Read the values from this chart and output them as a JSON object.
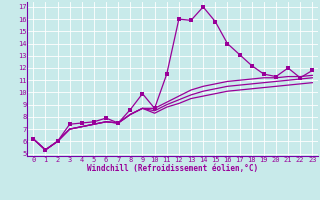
{
  "xlabel": "Windchill (Refroidissement éolien,°C)",
  "bg_color": "#c8eaea",
  "line_color": "#990099",
  "grid_color": "#ffffff",
  "spine_color": "#7700aa",
  "xlim": [
    -0.5,
    23.5
  ],
  "ylim": [
    4.8,
    17.4
  ],
  "xticks": [
    0,
    1,
    2,
    3,
    4,
    5,
    6,
    7,
    8,
    9,
    10,
    11,
    12,
    13,
    14,
    15,
    16,
    17,
    18,
    19,
    20,
    21,
    22,
    23
  ],
  "yticks": [
    5,
    6,
    7,
    8,
    9,
    10,
    11,
    12,
    13,
    14,
    15,
    16,
    17
  ],
  "series": [
    [
      6.2,
      5.3,
      6.0,
      7.4,
      7.5,
      7.6,
      7.9,
      7.5,
      8.6,
      9.9,
      8.7,
      11.5,
      16.0,
      15.9,
      17.0,
      15.8,
      14.0,
      13.1,
      12.2,
      11.5,
      11.3,
      12.0,
      11.2,
      11.8
    ],
    [
      6.2,
      5.3,
      6.0,
      7.0,
      7.2,
      7.4,
      7.6,
      7.5,
      8.2,
      8.7,
      8.7,
      9.2,
      9.7,
      10.2,
      10.5,
      10.7,
      10.9,
      11.0,
      11.1,
      11.2,
      11.2,
      11.3,
      11.3,
      11.4
    ],
    [
      6.2,
      5.3,
      6.0,
      7.0,
      7.2,
      7.4,
      7.6,
      7.5,
      8.2,
      8.7,
      8.5,
      9.0,
      9.4,
      9.8,
      10.1,
      10.3,
      10.5,
      10.6,
      10.7,
      10.8,
      10.9,
      11.0,
      11.1,
      11.2
    ],
    [
      6.2,
      5.3,
      6.0,
      7.0,
      7.2,
      7.4,
      7.6,
      7.5,
      8.2,
      8.7,
      8.3,
      8.8,
      9.1,
      9.5,
      9.7,
      9.9,
      10.1,
      10.2,
      10.3,
      10.4,
      10.5,
      10.6,
      10.7,
      10.8
    ]
  ],
  "tick_fontsize": 5.0,
  "xlabel_fontsize": 5.5,
  "marker_size": 2.2,
  "line_width": 0.9
}
